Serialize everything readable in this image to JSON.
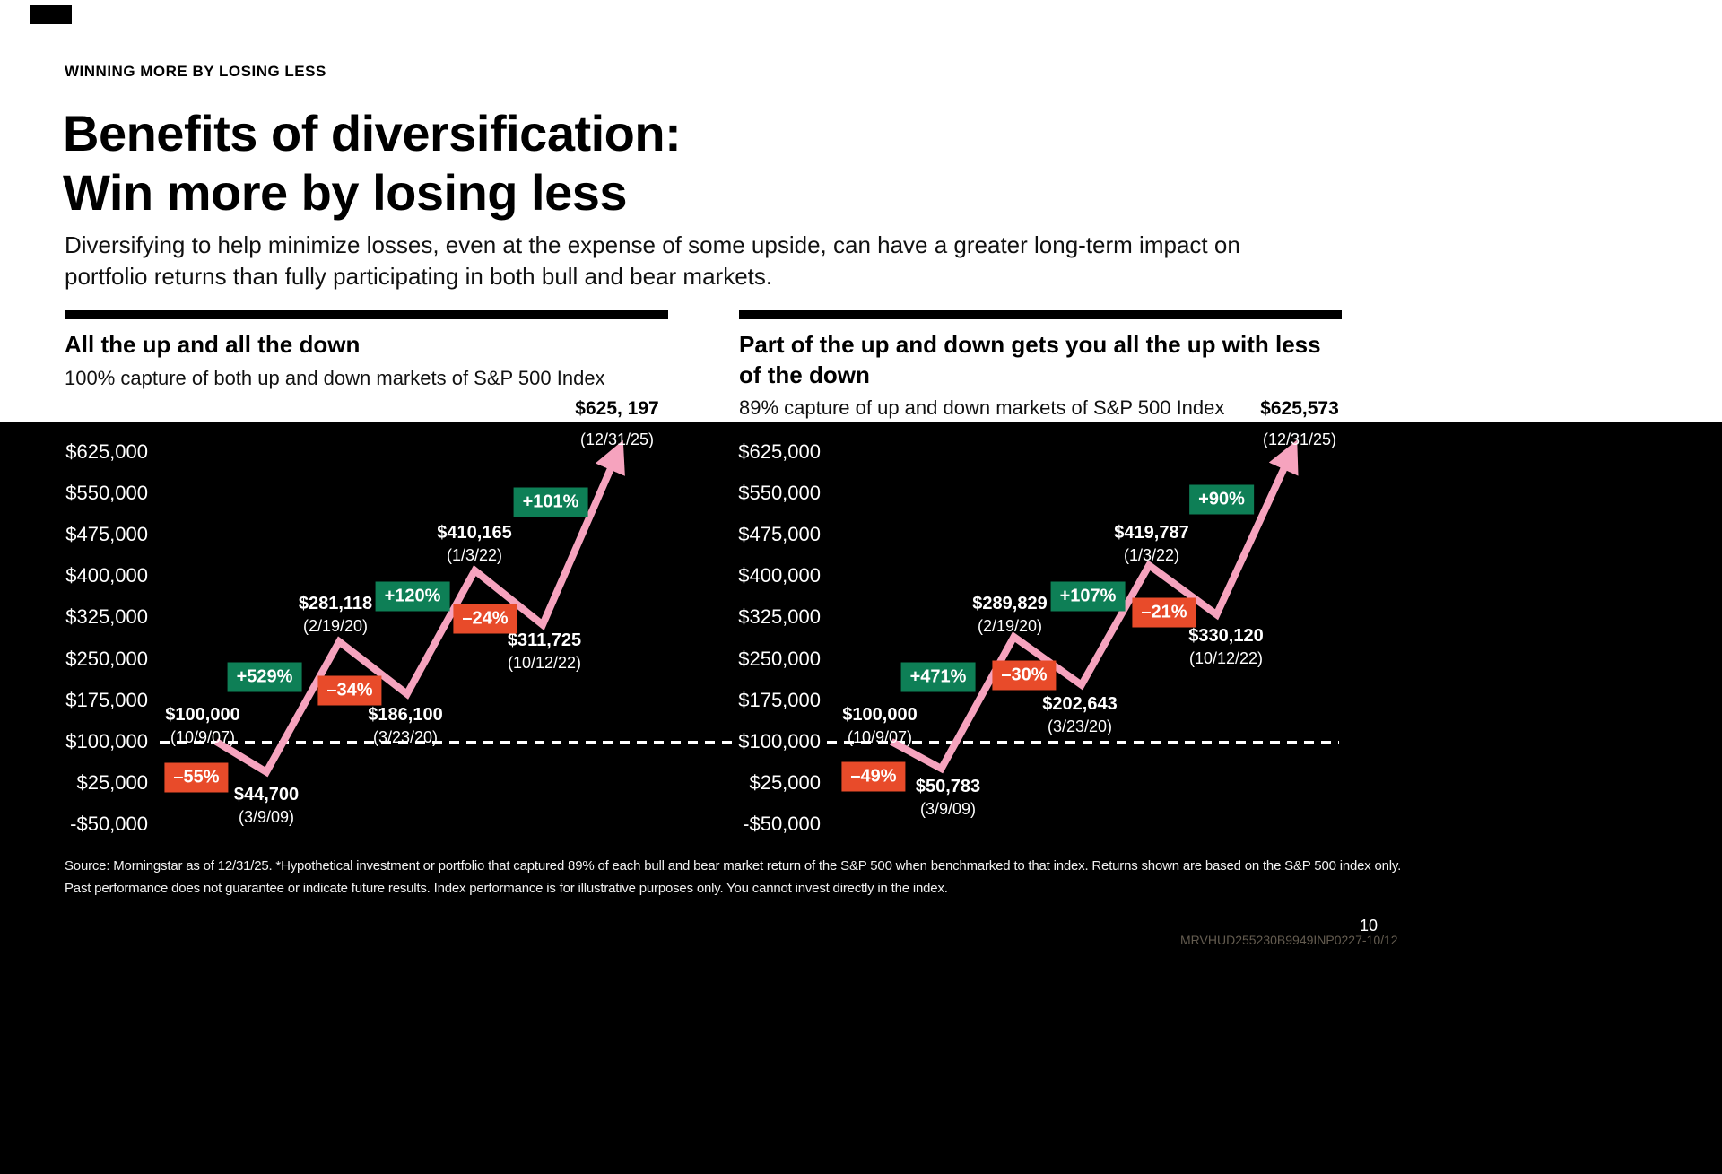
{
  "header": {
    "eyebrow": "WINNING MORE BY LOSING LESS",
    "title_line1": "Benefits of diversification:",
    "title_line2": "Win more by losing less",
    "intro": "Diversifying to help minimize losses, even at the expense of some upside, can have a greater long-term impact on portfolio returns than fully participating in both bull and bear markets."
  },
  "footer": {
    "footnote_line1": "Source: Morningstar as of 12/31/25. *Hypothetical investment or portfolio that captured 89% of each bull and bear market return of the S&P 500 when benchmarked to that index. Returns shown are based on the S&P 500 index only.",
    "footnote_line2": "Past performance does not guarantee or indicate future results. Index performance is for illustrative purposes only. You cannot invest directly in the index.",
    "page_number": "10",
    "doc_code": "MRVHUD255230B9949INP0227-10/12"
  },
  "colors": {
    "line_pink": "#F6A3BE",
    "badge_green": "#0E7F56",
    "badge_red": "#E84B2A",
    "chart_background": "#000000"
  },
  "chart_data": [
    {
      "type": "line",
      "panel_title": "All the up and all the down",
      "panel_subtitle": "100% capture of both up and down markets of S&P 500 Index",
      "ylim": [
        -50000,
        625000
      ],
      "y_ticks": [
        "$625,000",
        "$550,000",
        "$475,000",
        "$400,000",
        "$325,000",
        "$250,000",
        "$175,000",
        "$100,000",
        "$25,000",
        "-$50,000"
      ],
      "baseline_value": 100000,
      "baseline_style": "dashed",
      "points": [
        {
          "value": 100000,
          "label": "$100,000",
          "date": "(10/9/07)"
        },
        {
          "value": 44700,
          "label": "$44,700",
          "date": "(3/9/09)",
          "change": "–55%",
          "direction": "down"
        },
        {
          "value": 281118,
          "label": "$281,118",
          "date": "(2/19/20)",
          "change": "+529%",
          "direction": "up"
        },
        {
          "value": 186100,
          "label": "$186,100",
          "date": "(3/23/20)",
          "change": "–34%",
          "direction": "down"
        },
        {
          "value": 410165,
          "label": "$410,165",
          "date": "(1/3/22)",
          "change": "+120%",
          "direction": "up"
        },
        {
          "value": 311725,
          "label": "$311,725",
          "date": "(10/12/22)",
          "change": "–24%",
          "direction": "down"
        },
        {
          "value": 625197,
          "label": "$625, 197",
          "date": "(12/31/25)",
          "change": "+101%",
          "direction": "up"
        }
      ]
    },
    {
      "type": "line",
      "panel_title": "Part of the up and down gets you all the up with less of the down",
      "panel_subtitle": "89% capture of up and down markets of S&P 500 Index",
      "ylim": [
        -50000,
        625000
      ],
      "y_ticks": [
        "$625,000",
        "$550,000",
        "$475,000",
        "$400,000",
        "$325,000",
        "$250,000",
        "$175,000",
        "$100,000",
        "$25,000",
        "-$50,000"
      ],
      "baseline_value": 100000,
      "baseline_style": "dashed",
      "points": [
        {
          "value": 100000,
          "label": "$100,000",
          "date": "(10/9/07)"
        },
        {
          "value": 50783,
          "label": "$50,783",
          "date": "(3/9/09)",
          "change": "–49%",
          "direction": "down"
        },
        {
          "value": 289829,
          "label": "$289,829",
          "date": "(2/19/20)",
          "change": "+471%",
          "direction": "up"
        },
        {
          "value": 202643,
          "label": "$202,643",
          "date": "(3/23/20)",
          "change": "–30%",
          "direction": "down"
        },
        {
          "value": 419787,
          "label": "$419,787",
          "date": "(1/3/22)",
          "change": "+107%",
          "direction": "up"
        },
        {
          "value": 330120,
          "label": "$330,120",
          "date": "(10/12/22)",
          "change": "–21%",
          "direction": "down"
        },
        {
          "value": 625573,
          "label": "$625,573",
          "date": "(12/31/25)",
          "change": "+90%",
          "direction": "up"
        }
      ]
    }
  ]
}
